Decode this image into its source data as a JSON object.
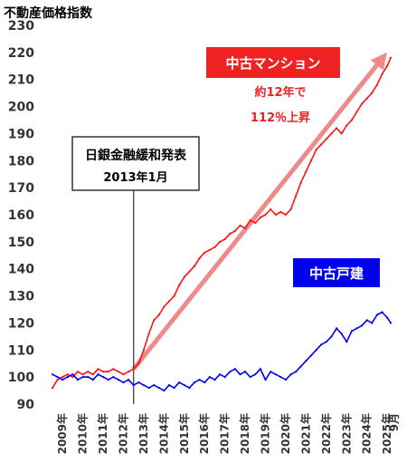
{
  "chart_data": {
    "type": "line",
    "title": "不動産価格指数",
    "ylim": [
      90,
      230
    ],
    "y_ticks": [
      90,
      100,
      110,
      120,
      130,
      140,
      150,
      160,
      170,
      180,
      190,
      200,
      210,
      220,
      230
    ],
    "x_tick_labels": [
      "2009年",
      "2010年",
      "2011年",
      "2012年",
      "2013年",
      "2014年",
      "2015年",
      "2016年",
      "2017年",
      "2018年",
      "2019年",
      "2020年",
      "2021年",
      "2022年",
      "2023年",
      "2024年",
      "2025年"
    ],
    "x_end_label": "9月",
    "grid": false,
    "series": [
      {
        "name": "中古マンション",
        "color": "#ff1111",
        "x": [
          2009.0,
          2009.25,
          2009.5,
          2009.75,
          2010.0,
          2010.25,
          2010.5,
          2010.75,
          2011.0,
          2011.25,
          2011.5,
          2011.75,
          2012.0,
          2012.25,
          2012.5,
          2012.75,
          2013.0,
          2013.25,
          2013.5,
          2013.75,
          2014.0,
          2014.25,
          2014.5,
          2014.75,
          2015.0,
          2015.25,
          2015.5,
          2015.75,
          2016.0,
          2016.25,
          2016.5,
          2016.75,
          2017.0,
          2017.25,
          2017.5,
          2017.75,
          2018.0,
          2018.25,
          2018.5,
          2018.75,
          2019.0,
          2019.25,
          2019.5,
          2019.75,
          2020.0,
          2020.25,
          2020.5,
          2020.75,
          2021.0,
          2021.25,
          2021.5,
          2021.75,
          2022.0,
          2022.25,
          2022.5,
          2022.75,
          2023.0,
          2023.25,
          2023.5,
          2023.75,
          2024.0,
          2024.25,
          2024.5,
          2024.75,
          2025.0,
          2025.25,
          2025.5,
          2025.67
        ],
        "values": [
          96,
          99,
          100,
          101,
          100,
          102,
          101,
          102,
          101,
          103,
          102,
          102,
          103,
          102,
          101,
          102,
          103,
          105,
          110,
          116,
          121,
          123,
          126,
          128,
          130,
          134,
          137,
          139,
          141,
          144,
          146,
          147,
          148,
          150,
          151,
          153,
          154,
          156,
          155,
          158,
          157,
          159,
          160,
          162,
          160,
          161,
          160,
          162,
          167,
          172,
          176,
          180,
          184,
          186,
          188,
          190,
          192,
          190,
          193,
          195,
          198,
          201,
          203,
          205,
          208,
          212,
          215,
          218
        ]
      },
      {
        "name": "中古戸建",
        "color": "#0000ee",
        "x": [
          2009.0,
          2009.25,
          2009.5,
          2009.75,
          2010.0,
          2010.25,
          2010.5,
          2010.75,
          2011.0,
          2011.25,
          2011.5,
          2011.75,
          2012.0,
          2012.25,
          2012.5,
          2012.75,
          2013.0,
          2013.25,
          2013.5,
          2013.75,
          2014.0,
          2014.25,
          2014.5,
          2014.75,
          2015.0,
          2015.25,
          2015.5,
          2015.75,
          2016.0,
          2016.25,
          2016.5,
          2016.75,
          2017.0,
          2017.25,
          2017.5,
          2017.75,
          2018.0,
          2018.25,
          2018.5,
          2018.75,
          2019.0,
          2019.25,
          2019.5,
          2019.75,
          2020.0,
          2020.25,
          2020.5,
          2020.75,
          2021.0,
          2021.25,
          2021.5,
          2021.75,
          2022.0,
          2022.25,
          2022.5,
          2022.75,
          2023.0,
          2023.25,
          2023.5,
          2023.75,
          2024.0,
          2024.25,
          2024.5,
          2024.75,
          2025.0,
          2025.25,
          2025.5,
          2025.67
        ],
        "values": [
          101,
          100,
          99,
          100,
          101,
          99,
          100,
          100,
          99,
          101,
          100,
          99,
          100,
          99,
          98,
          99,
          97,
          98,
          97,
          96,
          97,
          96,
          95,
          97,
          96,
          98,
          97,
          96,
          98,
          99,
          98,
          100,
          99,
          101,
          100,
          102,
          103,
          101,
          102,
          100,
          101,
          103,
          99,
          102,
          101,
          100,
          99,
          101,
          102,
          104,
          106,
          108,
          110,
          112,
          113,
          115,
          118,
          116,
          113,
          117,
          118,
          119,
          121,
          120,
          123,
          124,
          122,
          120
        ]
      }
    ],
    "annotations": {
      "event_box_line1": "日銀金融緩和発表",
      "event_box_line2": "2013年1月",
      "event_x": 2013.0,
      "trend_line1": "約12年で",
      "trend_line2": "112％上昇",
      "trend_from": [
        2013.0,
        103
      ],
      "trend_to": [
        2025.67,
        218
      ]
    }
  }
}
